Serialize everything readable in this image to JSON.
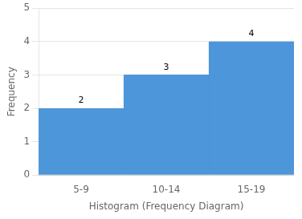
{
  "chart_data": {
    "type": "bar",
    "xlabel": "Histogram (Frequency Diagram)",
    "ylabel": "Frequency",
    "categories": [
      "5-9",
      "10-14",
      "15-19"
    ],
    "values": [
      2,
      3,
      4
    ],
    "color": "#4D96D9",
    "ylim": [
      0,
      5
    ],
    "yticks": [
      0,
      1,
      2,
      3,
      4,
      5
    ],
    "grid": true,
    "data_labels": true
  }
}
